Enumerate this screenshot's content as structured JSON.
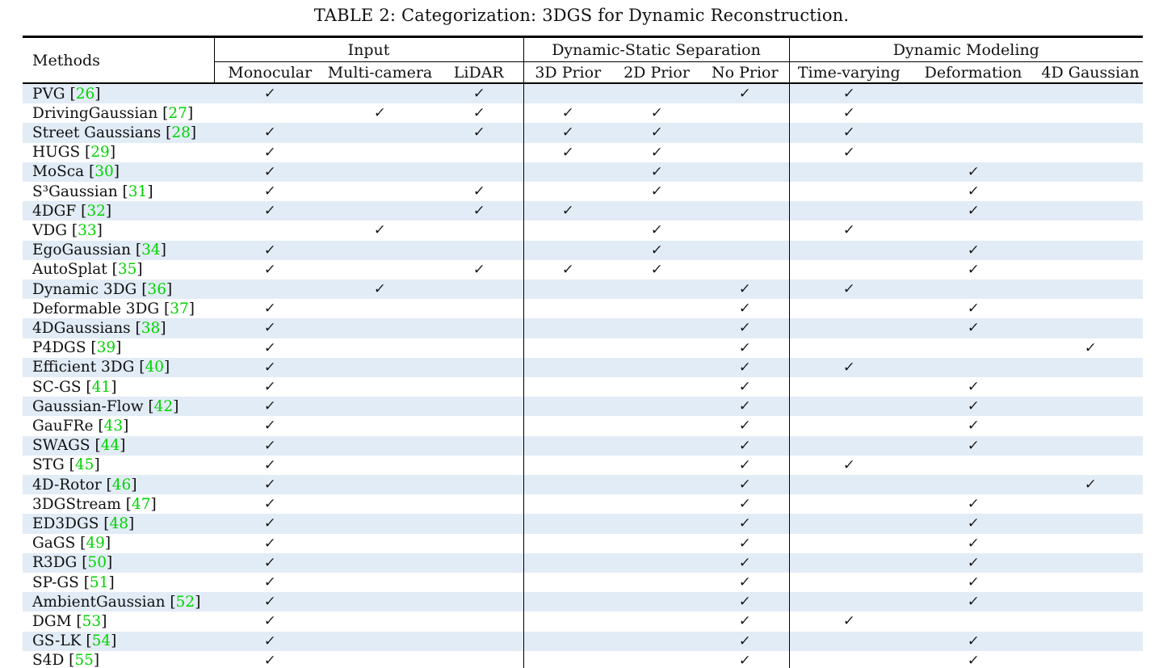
{
  "title": "TABLE 2: Categorization: 3DGS for Dynamic Reconstruction.",
  "colors": {
    "stripe": "#e2ecf6",
    "citation_green": "#00d400",
    "rule_black": "#000000"
  },
  "table": {
    "row_header": "Methods",
    "check_glyph": "✓",
    "groups": [
      {
        "label": "Input",
        "columns": [
          "Monocular",
          "Multi-camera",
          "LiDAR"
        ]
      },
      {
        "label": "Dynamic-Static Separation",
        "columns": [
          "3D Prior",
          "2D Prior",
          "No Prior"
        ]
      },
      {
        "label": "Dynamic Modeling",
        "columns": [
          "Time-varying",
          "Deformation",
          "4D Gaussian"
        ]
      }
    ],
    "column_keys": [
      "Monocular",
      "Multi-camera",
      "LiDAR",
      "3D Prior",
      "2D Prior",
      "No Prior",
      "Time-varying",
      "Deformation",
      "4D Gaussian"
    ],
    "rows": [
      {
        "method": "PVG",
        "ref": "26",
        "checks": [
          1,
          0,
          1,
          0,
          0,
          1,
          1,
          0,
          0
        ]
      },
      {
        "method": "DrivingGaussian",
        "ref": "27",
        "checks": [
          0,
          1,
          1,
          1,
          1,
          0,
          1,
          0,
          0
        ]
      },
      {
        "method": "Street Gaussians",
        "ref": "28",
        "checks": [
          1,
          0,
          1,
          1,
          1,
          0,
          1,
          0,
          0
        ]
      },
      {
        "method": "HUGS",
        "ref": "29",
        "checks": [
          1,
          0,
          0,
          1,
          1,
          0,
          1,
          0,
          0
        ]
      },
      {
        "method": "MoSca",
        "ref": "30",
        "checks": [
          1,
          0,
          0,
          0,
          1,
          0,
          0,
          1,
          0
        ]
      },
      {
        "method": "S³Gaussian",
        "ref": "31",
        "checks": [
          1,
          0,
          1,
          0,
          1,
          0,
          0,
          1,
          0
        ]
      },
      {
        "method": "4DGF",
        "ref": "32",
        "checks": [
          1,
          0,
          1,
          1,
          0,
          0,
          0,
          1,
          0
        ]
      },
      {
        "method": "VDG",
        "ref": "33",
        "checks": [
          0,
          1,
          0,
          0,
          1,
          0,
          1,
          0,
          0
        ]
      },
      {
        "method": "EgoGaussian",
        "ref": "34",
        "checks": [
          1,
          0,
          0,
          0,
          1,
          0,
          0,
          1,
          0
        ]
      },
      {
        "method": "AutoSplat",
        "ref": "35",
        "checks": [
          1,
          0,
          1,
          1,
          1,
          0,
          0,
          1,
          0
        ]
      },
      {
        "method": "Dynamic 3DG",
        "ref": "36",
        "checks": [
          0,
          1,
          0,
          0,
          0,
          1,
          1,
          0,
          0
        ]
      },
      {
        "method": "Deformable 3DG",
        "ref": "37",
        "checks": [
          1,
          0,
          0,
          0,
          0,
          1,
          0,
          1,
          0
        ]
      },
      {
        "method": "4DGaussians",
        "ref": "38",
        "checks": [
          1,
          0,
          0,
          0,
          0,
          1,
          0,
          1,
          0
        ]
      },
      {
        "method": "P4DGS",
        "ref": "39",
        "checks": [
          1,
          0,
          0,
          0,
          0,
          1,
          0,
          0,
          1
        ]
      },
      {
        "method": "Efficient 3DG",
        "ref": "40",
        "checks": [
          1,
          0,
          0,
          0,
          0,
          1,
          1,
          0,
          0
        ]
      },
      {
        "method": "SC-GS",
        "ref": "41",
        "checks": [
          1,
          0,
          0,
          0,
          0,
          1,
          0,
          1,
          0
        ]
      },
      {
        "method": "Gaussian-Flow",
        "ref": "42",
        "checks": [
          1,
          0,
          0,
          0,
          0,
          1,
          0,
          1,
          0
        ]
      },
      {
        "method": "GauFRe",
        "ref": "43",
        "checks": [
          1,
          0,
          0,
          0,
          0,
          1,
          0,
          1,
          0
        ]
      },
      {
        "method": "SWAGS",
        "ref": "44",
        "checks": [
          1,
          0,
          0,
          0,
          0,
          1,
          0,
          1,
          0
        ]
      },
      {
        "method": "STG",
        "ref": "45",
        "checks": [
          1,
          0,
          0,
          0,
          0,
          1,
          1,
          0,
          0
        ]
      },
      {
        "method": "4D-Rotor",
        "ref": "46",
        "checks": [
          1,
          0,
          0,
          0,
          0,
          1,
          0,
          0,
          1
        ]
      },
      {
        "method": "3DGStream",
        "ref": "47",
        "checks": [
          1,
          0,
          0,
          0,
          0,
          1,
          0,
          1,
          0
        ]
      },
      {
        "method": "ED3DGS",
        "ref": "48",
        "checks": [
          1,
          0,
          0,
          0,
          0,
          1,
          0,
          1,
          0
        ]
      },
      {
        "method": "GaGS",
        "ref": "49",
        "checks": [
          1,
          0,
          0,
          0,
          0,
          1,
          0,
          1,
          0
        ]
      },
      {
        "method": "R3DG",
        "ref": "50",
        "checks": [
          1,
          0,
          0,
          0,
          0,
          1,
          0,
          1,
          0
        ]
      },
      {
        "method": "SP-GS",
        "ref": "51",
        "checks": [
          1,
          0,
          0,
          0,
          0,
          1,
          0,
          1,
          0
        ]
      },
      {
        "method": "AmbientGaussian",
        "ref": "52",
        "checks": [
          1,
          0,
          0,
          0,
          0,
          1,
          0,
          1,
          0
        ]
      },
      {
        "method": "DGM",
        "ref": "53",
        "checks": [
          1,
          0,
          0,
          0,
          0,
          1,
          1,
          0,
          0
        ]
      },
      {
        "method": "GS-LK",
        "ref": "54",
        "checks": [
          1,
          0,
          0,
          0,
          0,
          1,
          0,
          1,
          0
        ]
      },
      {
        "method": "S4D",
        "ref": "55",
        "checks": [
          1,
          0,
          0,
          0,
          0,
          1,
          0,
          1,
          0
        ]
      }
    ]
  }
}
